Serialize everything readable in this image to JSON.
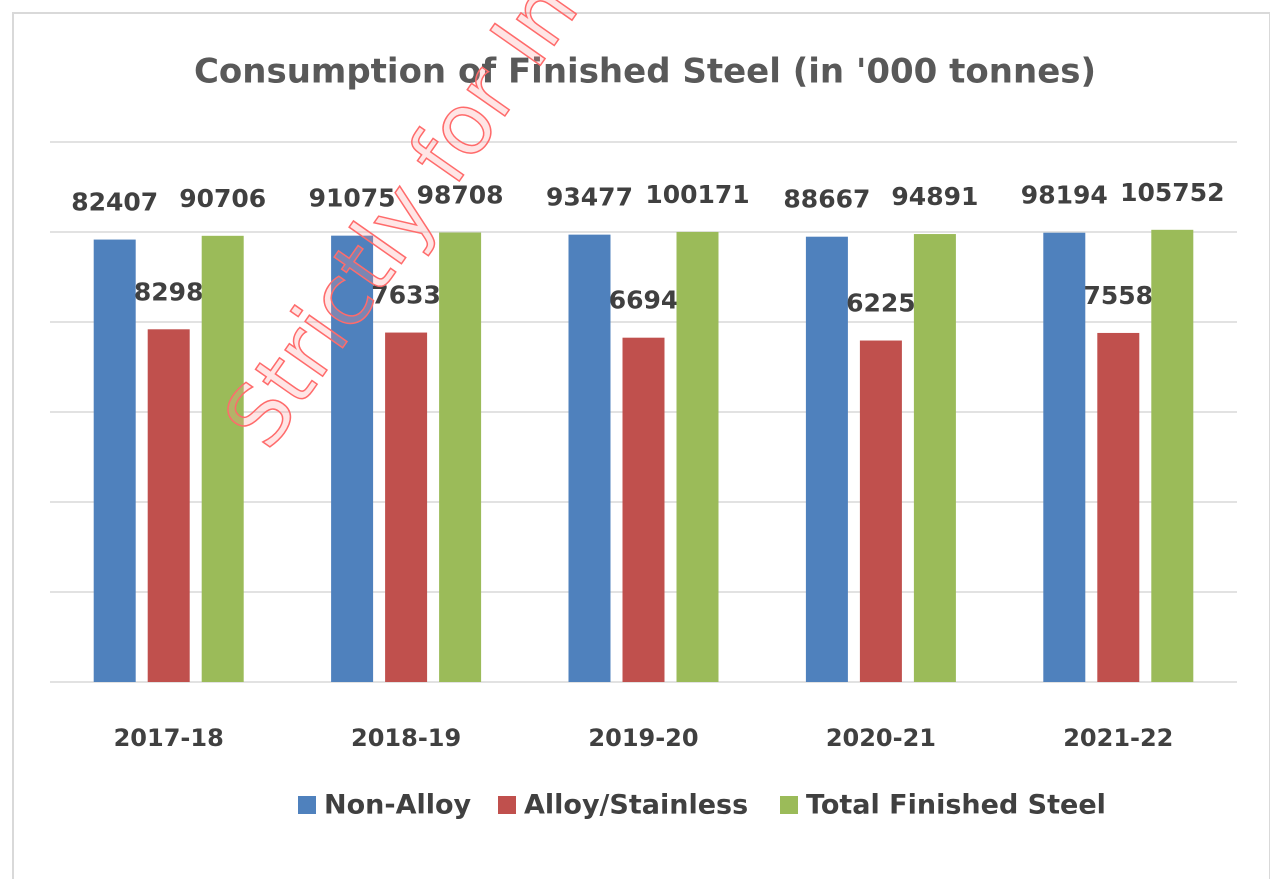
{
  "chart_data": {
    "type": "bar",
    "title": "Consumption of Finished Steel (in '000 tonnes)",
    "categories": [
      "2017-18",
      "2018-19",
      "2019-20",
      "2020-21",
      "2021-22"
    ],
    "series": [
      {
        "name": "Non-Alloy",
        "color": "#4f81bd",
        "values": [
          82407,
          91075,
          93477,
          88667,
          98194
        ]
      },
      {
        "name": "Alloy/Stainless",
        "color": "#c0504d",
        "values": [
          8298,
          7633,
          6694,
          6225,
          7558
        ]
      },
      {
        "name": "Total Finished Steel",
        "color": "#9bbb59",
        "values": [
          90706,
          98708,
          100171,
          94891,
          105752
        ]
      }
    ],
    "log_scale": true,
    "ylim": [
      1,
      1000000
    ],
    "yticks": [
      1,
      10,
      100,
      1000,
      10000,
      100000,
      1000000
    ],
    "grid": true,
    "legend": "bottom",
    "watermark": "Strictly for Inter"
  }
}
